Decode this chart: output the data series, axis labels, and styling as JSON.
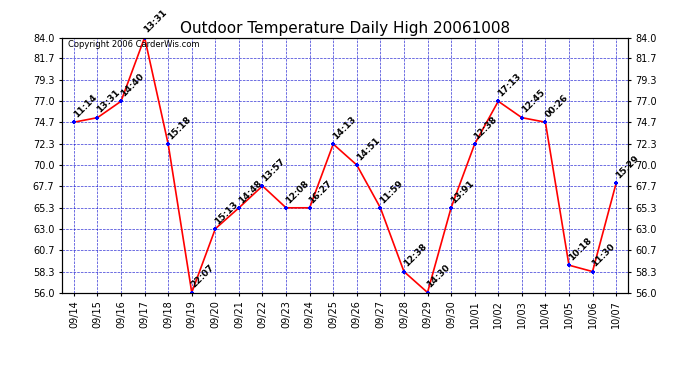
{
  "title": "Outdoor Temperature Daily High 20061008",
  "copyright": "Copyright 2006 CarderWis.com",
  "dates": [
    "09/14",
    "09/15",
    "09/16",
    "09/17",
    "09/18",
    "09/19",
    "09/20",
    "09/21",
    "09/22",
    "09/23",
    "09/24",
    "09/25",
    "09/26",
    "09/27",
    "09/28",
    "09/29",
    "09/30",
    "10/01",
    "10/02",
    "10/03",
    "10/04",
    "10/05",
    "10/06",
    "10/07"
  ],
  "values": [
    74.7,
    75.2,
    77.0,
    84.0,
    72.3,
    56.0,
    63.0,
    65.3,
    67.7,
    65.3,
    65.3,
    72.3,
    70.0,
    65.3,
    58.3,
    56.0,
    65.3,
    72.3,
    77.0,
    75.2,
    74.7,
    59.0,
    58.3,
    68.0
  ],
  "labels": [
    "11:14",
    "13:31",
    "14:40",
    "13:31",
    "15:18",
    "22:07",
    "15:13",
    "14:48",
    "13:57",
    "12:08",
    "16:27",
    "14:13",
    "14:51",
    "11:59",
    "12:38",
    "14:30",
    "13:91",
    "12:38",
    "17:13",
    "12:45",
    "00:26",
    "10:18",
    "11:30",
    "15:29"
  ],
  "ylim_min": 56.0,
  "ylim_max": 84.0,
  "yticks": [
    56.0,
    58.3,
    60.7,
    63.0,
    65.3,
    67.7,
    70.0,
    72.3,
    74.7,
    77.0,
    79.3,
    81.7,
    84.0
  ],
  "line_color": "red",
  "marker_color": "blue",
  "bg_color": "white",
  "grid_color": "#0000cc",
  "title_fontsize": 11,
  "tick_fontsize": 7,
  "annotation_fontsize": 6.5,
  "copyright_fontsize": 6
}
